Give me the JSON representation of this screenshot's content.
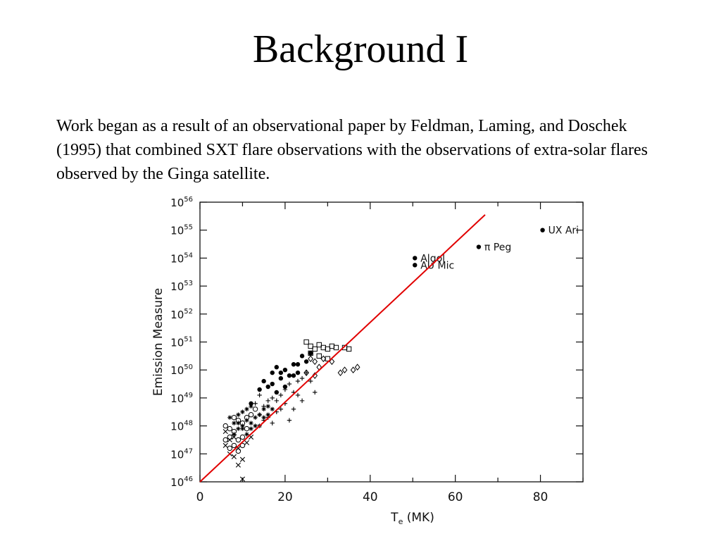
{
  "slide": {
    "title": "Background I",
    "body": "Work began as a result of an observational paper by Feldman, Laming, and Doschek (1995) that combined SXT flare observations with the observations of extra-solar flares observed by the Ginga satellite."
  },
  "chart_data": {
    "type": "scatter",
    "title": "",
    "xlabel": "T_e (MK)",
    "ylabel": "Emission Measure",
    "xlim": [
      0,
      90
    ],
    "ylim_log10": [
      46,
      56
    ],
    "y_scale": "log",
    "x_ticks": [
      "0",
      "20",
      "40",
      "60",
      "80"
    ],
    "y_ticks": [
      {
        "base": "10",
        "exp": "56"
      },
      {
        "base": "10",
        "exp": "55"
      },
      {
        "base": "10",
        "exp": "54"
      },
      {
        "base": "10",
        "exp": "53"
      },
      {
        "base": "10",
        "exp": "52"
      },
      {
        "base": "10",
        "exp": "51"
      },
      {
        "base": "10",
        "exp": "50"
      },
      {
        "base": "10",
        "exp": "49"
      },
      {
        "base": "10",
        "exp": "48"
      },
      {
        "base": "10",
        "exp": "47"
      },
      {
        "base": "10",
        "exp": "46"
      }
    ],
    "labeled_points": [
      {
        "label": "UX Ari",
        "x": 80.5,
        "log_em": 55.0,
        "marker": "filled-circle"
      },
      {
        "label": "π Peg",
        "x": 65.5,
        "log_em": 54.4,
        "marker": "filled-circle"
      },
      {
        "label": "Algol",
        "x": 50.5,
        "log_em": 54.0,
        "marker": "filled-circle"
      },
      {
        "label": "AU Mic",
        "x": 50.5,
        "log_em": 53.75,
        "marker": "filled-circle"
      }
    ],
    "series": [
      {
        "marker": "open-square",
        "points": [
          [
            25,
            51
          ],
          [
            26,
            50.85
          ],
          [
            27,
            50.75
          ],
          [
            28,
            50.9
          ],
          [
            29,
            50.8
          ],
          [
            30,
            50.75
          ],
          [
            31,
            50.85
          ],
          [
            32,
            50.8
          ],
          [
            34,
            50.8
          ],
          [
            35,
            50.75
          ],
          [
            26,
            50.6
          ],
          [
            28,
            50.5
          ],
          [
            30,
            50.4
          ]
        ]
      },
      {
        "marker": "open-diamond",
        "points": [
          [
            26,
            50.4
          ],
          [
            27,
            50.3
          ],
          [
            29,
            50.4
          ],
          [
            31,
            50.3
          ],
          [
            33,
            49.9
          ],
          [
            34,
            50.0
          ],
          [
            36,
            50.0
          ],
          [
            37,
            50.1
          ],
          [
            25,
            49.9
          ],
          [
            27,
            49.8
          ],
          [
            28,
            50.1
          ]
        ]
      },
      {
        "marker": "filled-circle",
        "points": [
          [
            12,
            48.8
          ],
          [
            14,
            49.3
          ],
          [
            15,
            49.6
          ],
          [
            16,
            49.4
          ],
          [
            17,
            49.9
          ],
          [
            18,
            50.1
          ],
          [
            19,
            49.7
          ],
          [
            20,
            50.0
          ],
          [
            21,
            49.8
          ],
          [
            22,
            50.2
          ],
          [
            23,
            50.2
          ],
          [
            24,
            50.5
          ],
          [
            25,
            50.3
          ],
          [
            20,
            49.4
          ],
          [
            18,
            49.2
          ],
          [
            22,
            49.8
          ],
          [
            17,
            49.5
          ],
          [
            26,
            50.6
          ],
          [
            19,
            49.9
          ],
          [
            23,
            49.9
          ]
        ]
      },
      {
        "marker": "open-circle",
        "points": [
          [
            6,
            48
          ],
          [
            7,
            47.6
          ],
          [
            8,
            47.3
          ],
          [
            9,
            47.5
          ],
          [
            10,
            48.1
          ],
          [
            8,
            48.3
          ],
          [
            7,
            47.9
          ],
          [
            9,
            47.1
          ],
          [
            11,
            47.9
          ],
          [
            6,
            47.5
          ],
          [
            10,
            47.6
          ],
          [
            12,
            48.4
          ],
          [
            8,
            47.8
          ],
          [
            13,
            48.6
          ],
          [
            11,
            48.3
          ],
          [
            9,
            48.2
          ],
          [
            7,
            47.2
          ],
          [
            10,
            47.3
          ]
        ]
      },
      {
        "marker": "plus",
        "points": [
          [
            14,
            48.4
          ],
          [
            15,
            48.7
          ],
          [
            16,
            48.9
          ],
          [
            17,
            49.0
          ],
          [
            18,
            48.9
          ],
          [
            19,
            49.1
          ],
          [
            20,
            49.3
          ],
          [
            21,
            49.5
          ],
          [
            22,
            49.2
          ],
          [
            23,
            49.6
          ],
          [
            24,
            49.7
          ],
          [
            25,
            49.9
          ],
          [
            26,
            49.6
          ],
          [
            27,
            49.2
          ],
          [
            18,
            48.5
          ],
          [
            16,
            48.3
          ],
          [
            20,
            48.8
          ],
          [
            22,
            48.6
          ],
          [
            21,
            48.2
          ],
          [
            24,
            48.9
          ],
          [
            19,
            48.6
          ],
          [
            17,
            48.1
          ],
          [
            23,
            49.1
          ],
          [
            15,
            48.2
          ],
          [
            13,
            48.8
          ],
          [
            14,
            49.1
          ]
        ]
      },
      {
        "marker": "asterisk",
        "points": [
          [
            7,
            48.3
          ],
          [
            8,
            48.1
          ],
          [
            9,
            47.9
          ],
          [
            10,
            48.0
          ],
          [
            11,
            48.2
          ],
          [
            12,
            48.1
          ],
          [
            13,
            48.3
          ],
          [
            14,
            48.4
          ],
          [
            15,
            48.6
          ],
          [
            16,
            48.7
          ],
          [
            9,
            48.4
          ],
          [
            10,
            48.5
          ],
          [
            11,
            48.6
          ],
          [
            12,
            48.7
          ],
          [
            8,
            47.7
          ],
          [
            13,
            48.0
          ],
          [
            10,
            47.9
          ],
          [
            12,
            47.9
          ],
          [
            14,
            48.0
          ],
          [
            11,
            47.7
          ],
          [
            9,
            48.1
          ],
          [
            15,
            48.3
          ],
          [
            16,
            48.4
          ],
          [
            17,
            48.6
          ]
        ]
      },
      {
        "marker": "cross",
        "points": [
          [
            6,
            47.3
          ],
          [
            7,
            47.0
          ],
          [
            8,
            46.9
          ],
          [
            9,
            46.6
          ],
          [
            10,
            46.1
          ],
          [
            7,
            47.5
          ],
          [
            8,
            47.6
          ],
          [
            6,
            47.8
          ],
          [
            9,
            47.2
          ],
          [
            11,
            47.4
          ],
          [
            12,
            47.6
          ],
          [
            10,
            46.8
          ]
        ]
      }
    ],
    "fit_line": {
      "x": [
        0,
        67
      ],
      "log_em": [
        46.0,
        55.55
      ],
      "color": "#e10000"
    }
  }
}
